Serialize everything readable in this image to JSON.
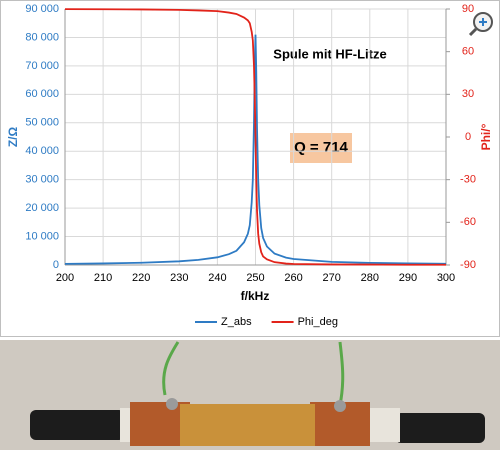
{
  "chart_data": {
    "type": "line",
    "title": "Spule mit HF-Litze",
    "annotation": "Q = 714",
    "xlabel": "f/kHz",
    "ylabel": "Z/Ω",
    "y2label": "Phi/°",
    "x": [
      200,
      210,
      220,
      230,
      235,
      240,
      243,
      245,
      247,
      248,
      248.5,
      249,
      249.3,
      249.6,
      249.8,
      250,
      250.2,
      250.4,
      250.7,
      251,
      251.5,
      252,
      253,
      255,
      258,
      260,
      270,
      280,
      290,
      300
    ],
    "series": [
      {
        "name": "Z_abs",
        "color": "#2e7bc4",
        "axis": "y",
        "values": [
          400,
          550,
          800,
          1300,
          1800,
          2700,
          3800,
          5000,
          8000,
          11000,
          14000,
          22000,
          30000,
          50000,
          70000,
          81000,
          68000,
          48000,
          30000,
          21000,
          13000,
          9500,
          6500,
          4000,
          2600,
          2100,
          1100,
          750,
          550,
          430
        ]
      },
      {
        "name": "Phi_deg",
        "color": "#e2231a",
        "axis": "y2",
        "values": [
          89.9,
          89.8,
          89.7,
          89.4,
          89,
          88.5,
          87.5,
          86.5,
          84,
          82,
          80,
          74,
          68,
          50,
          28,
          0,
          -30,
          -52,
          -68,
          -75,
          -81,
          -84,
          -86,
          -88,
          -89,
          -89.3,
          -89.6,
          -89.7,
          -89.8,
          -89.8
        ]
      }
    ],
    "xlim": [
      200,
      300
    ],
    "xticks": [
      200,
      210,
      220,
      230,
      240,
      250,
      260,
      270,
      280,
      290,
      300
    ],
    "ylim": [
      0,
      90000
    ],
    "yticks": [
      0,
      {
        "value": 10000,
        "label": "10 000"
      },
      {
        "value": 20000,
        "label": "20 000"
      },
      {
        "value": 30000,
        "label": "30 000"
      },
      {
        "value": 40000,
        "label": "40 000"
      },
      {
        "value": 50000,
        "label": "50 000"
      },
      {
        "value": 60000,
        "label": "60 000"
      },
      {
        "value": 70000,
        "label": "70 000"
      },
      {
        "value": 80000,
        "label": "80 000"
      },
      {
        "value": 90000,
        "label": "90 000"
      }
    ],
    "y2lim": [
      -90,
      90
    ],
    "y2ticks": [
      -90,
      -60,
      -30,
      0,
      30,
      60,
      90
    ],
    "grid": true,
    "legend": "bottom"
  }
}
